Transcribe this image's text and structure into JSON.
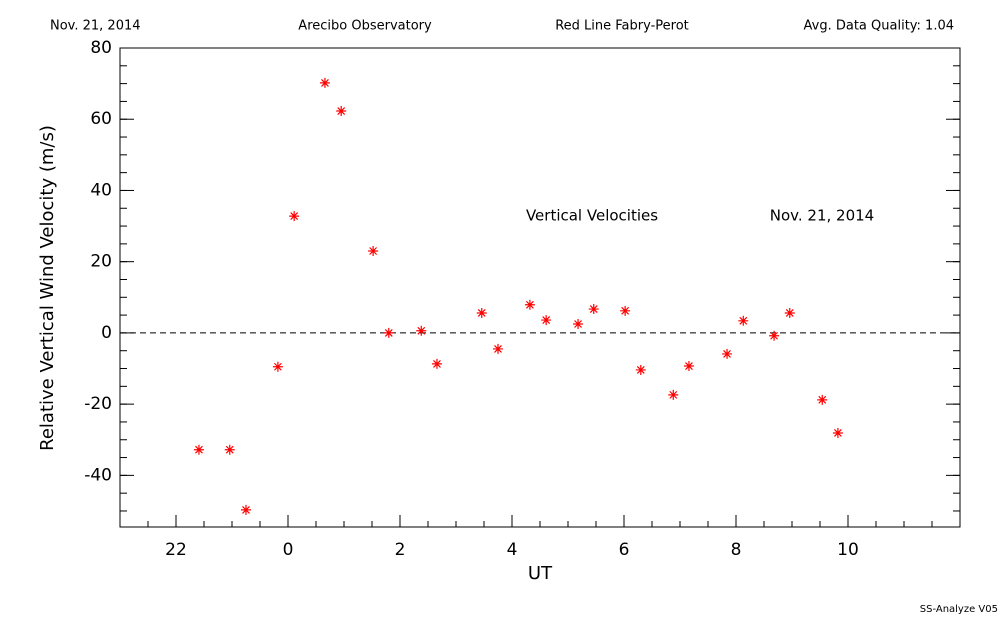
{
  "chart_data": {
    "type": "scatter",
    "header": [
      "Nov. 21, 2014",
      "Arecibo Observatory",
      "Red Line Fabry-Perot",
      "Avg. Data Quality: 1.04"
    ],
    "annotations": [
      "Vertical Velocities",
      "Nov. 21, 2014"
    ],
    "footer": "SS-Analyze V05",
    "xlabel": "UT",
    "ylabel": "Relative Vertical Wind Velocity (m/s)",
    "xlim": [
      -3,
      12
    ],
    "xticks": [
      {
        "value": -2,
        "label": "22"
      },
      0,
      2,
      4,
      6,
      8,
      10
    ],
    "ylim": [
      -54.5,
      80
    ],
    "yticks": [
      -40,
      -20,
      0,
      20,
      40,
      60,
      80
    ],
    "reference_line": 0,
    "color": "#ff0000",
    "x": [
      -1.59,
      -1.04,
      -0.75,
      -0.18,
      0.11,
      0.66,
      0.95,
      1.52,
      1.8,
      2.38,
      2.66,
      3.46,
      3.75,
      4.32,
      4.61,
      5.18,
      5.46,
      6.02,
      6.3,
      6.88,
      7.16,
      7.84,
      8.13,
      8.68,
      8.96,
      9.54,
      9.82
    ],
    "values": [
      -32.8,
      -32.8,
      -49.7,
      -9.5,
      32.8,
      70.2,
      62.3,
      23.0,
      0,
      0.6,
      -8.7,
      5.6,
      -4.5,
      7.9,
      3.6,
      2.5,
      6.7,
      6.2,
      -10.4,
      -17.4,
      -9.3,
      -5.9,
      3.4,
      -0.8,
      5.6,
      -18.8,
      -28.1
    ]
  }
}
